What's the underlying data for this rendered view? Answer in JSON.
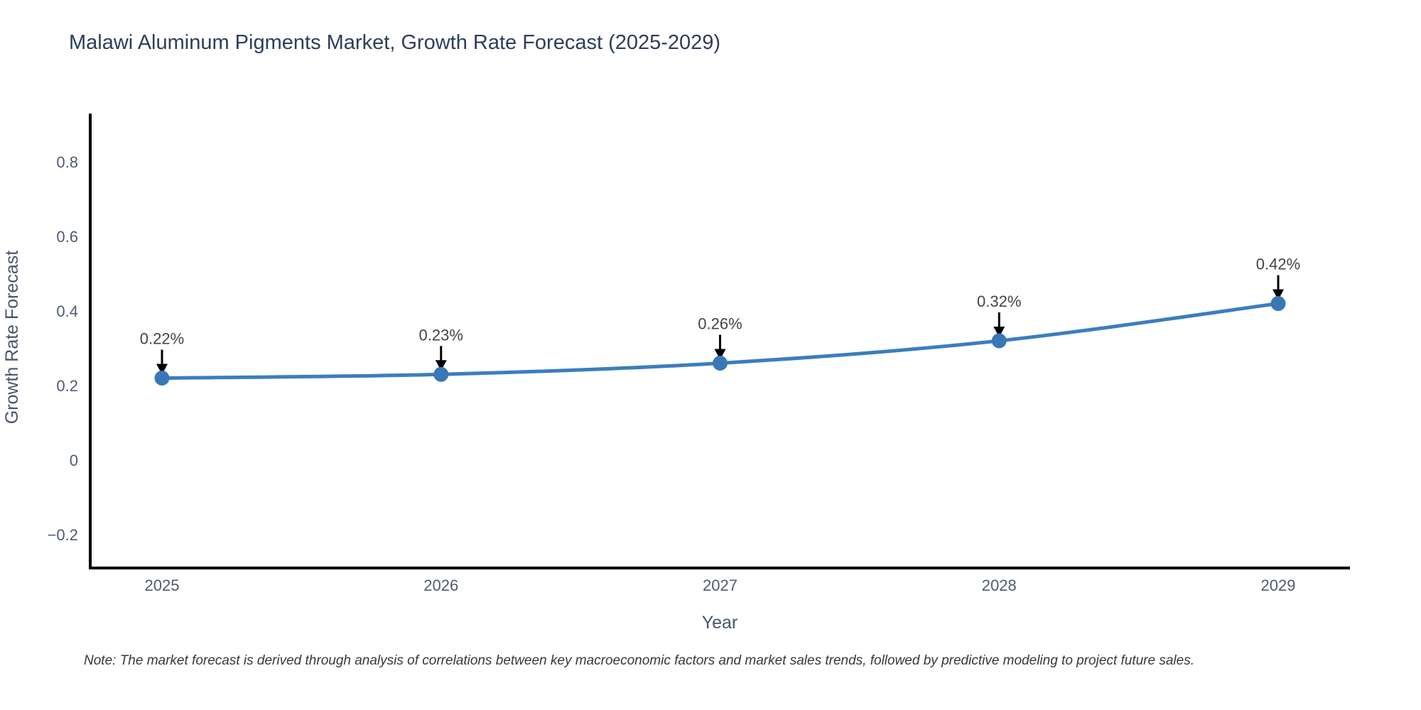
{
  "title": "Malawi Aluminum Pigments Market, Growth Rate Forecast (2025-2029)",
  "note": "Note: The market forecast is derived through analysis of correlations between key macroeconomic factors and market sales trends, followed by predictive modeling to project future sales.",
  "chart_data": {
    "type": "line",
    "title": "Malawi Aluminum Pigments Market, Growth Rate Forecast (2025-2029)",
    "xlabel": "Year",
    "ylabel": "Growth Rate Forecast",
    "categories": [
      "2025",
      "2026",
      "2027",
      "2028",
      "2029"
    ],
    "series": [
      {
        "name": "Growth Rate Forecast",
        "values": [
          0.22,
          0.23,
          0.26,
          0.32,
          0.42
        ]
      }
    ],
    "point_labels": [
      "0.22%",
      "0.23%",
      "0.26%",
      "0.32%",
      "0.42%"
    ],
    "y_ticks": [
      0.8,
      0.6,
      0.4,
      0.2,
      0,
      -0.2
    ],
    "y_tick_labels": [
      "0.8",
      "0.6",
      "0.4",
      "0.2",
      "0",
      "−0.2"
    ],
    "ylim": [
      -0.29,
      0.93
    ],
    "grid": false,
    "legend_position": "none",
    "annotations_note": "each point labeled with percent value and downward arrow",
    "colors": {
      "line": "#3c7dbe",
      "marker": "#3878b6",
      "axis_line": "#000000",
      "annotation_arrow": "#000000",
      "annotation_text": "#444444",
      "tick_text": "#4d5b72",
      "title_text": "#2b3f5c",
      "background": "#ffffff"
    }
  }
}
